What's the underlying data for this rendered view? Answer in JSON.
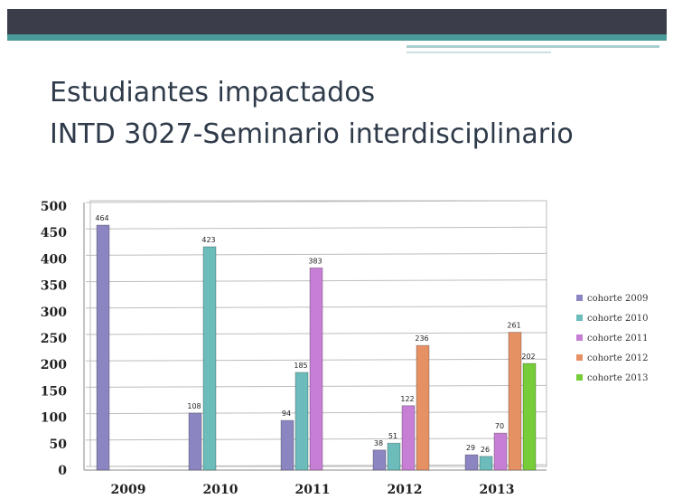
{
  "title_lines": [
    "Estudiantes impactados",
    "INTD 3027-Seminario interdisciplinario"
  ],
  "chart_data": {
    "type": "bar",
    "categories": [
      "2009",
      "2010",
      "2011",
      "2012",
      "2013"
    ],
    "series": [
      {
        "name": "cohorte 2009",
        "color": "#8b86c2",
        "values": [
          464,
          108,
          94,
          38,
          29
        ]
      },
      {
        "name": "cohorte 2010",
        "color": "#6cbcbc",
        "values": [
          null,
          423,
          185,
          51,
          26
        ]
      },
      {
        "name": "cohorte 2011",
        "color": "#c77fd6",
        "values": [
          null,
          null,
          383,
          122,
          70
        ]
      },
      {
        "name": "cohorte 2012",
        "color": "#e69164",
        "values": [
          null,
          null,
          null,
          236,
          261
        ]
      },
      {
        "name": "cohorte 2013",
        "color": "#77cc3a",
        "values": [
          null,
          null,
          null,
          null,
          202
        ]
      }
    ],
    "ylim": [
      0,
      500
    ],
    "yticks": [
      0,
      50,
      100,
      150,
      200,
      250,
      300,
      350,
      400,
      450,
      500
    ],
    "grid": true,
    "legend": "right"
  }
}
